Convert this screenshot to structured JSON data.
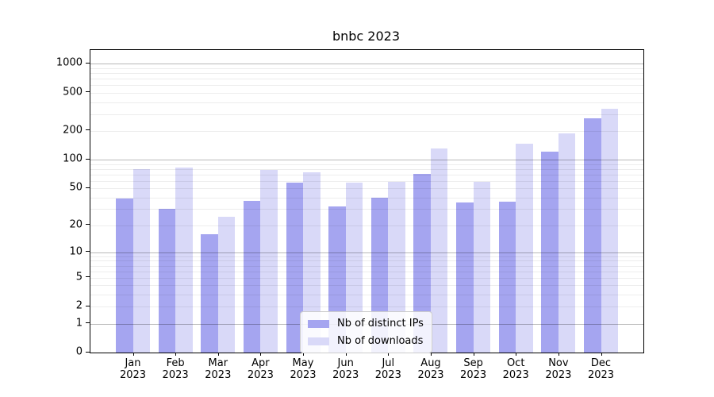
{
  "title": "bnbc 2023",
  "chart_data": {
    "type": "bar",
    "title": "bnbc 2023",
    "xlabel": "",
    "ylabel": "",
    "categories": [
      "Jan 2023",
      "Feb 2023",
      "Mar 2023",
      "Apr 2023",
      "May 2023",
      "Jun 2023",
      "Jul 2023",
      "Aug 2023",
      "Sep 2023",
      "Oct 2023",
      "Nov 2023",
      "Dec 2023"
    ],
    "series": [
      {
        "name": "Nb of distinct IPs",
        "color": "#a5a5f0",
        "values": [
          39,
          30,
          16,
          37,
          57,
          32,
          40,
          71,
          35,
          36,
          122,
          270
        ]
      },
      {
        "name": "Nb of downloads",
        "color": "#d9d9f8",
        "values": [
          80,
          83,
          25,
          78,
          73,
          57,
          59,
          130,
          58,
          147,
          188,
          340
        ]
      }
    ],
    "yticks": [
      0,
      1,
      2,
      5,
      10,
      20,
      50,
      100,
      200,
      500,
      1000
    ],
    "yscale": "log1p",
    "ylim": [
      0,
      1390
    ],
    "grid": {
      "major": [
        1,
        10,
        100,
        1000
      ],
      "minor_base": [
        2,
        3,
        4,
        5,
        6,
        7,
        8,
        9
      ],
      "minor_mult": [
        1,
        10,
        100
      ]
    },
    "legend_position": "inside-bottom-center-left"
  },
  "colors": {
    "background": "#ffffff",
    "spine": "#000000",
    "text": "#000000",
    "grid_major": "rgba(0,0,0,0.28)",
    "grid_minor": "rgba(0,0,0,0.07)",
    "legend_border": "#cccccc",
    "legend_bg": "rgba(255,255,255,0.85)"
  }
}
